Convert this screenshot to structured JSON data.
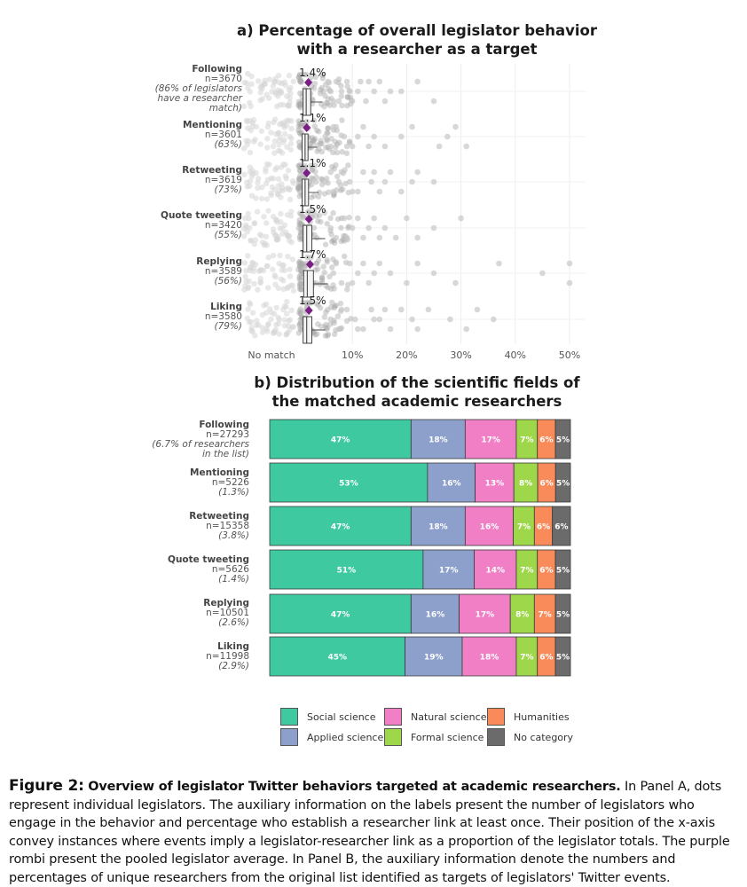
{
  "panel_a": {
    "title_line1": "a) Percentage of overall legislator behavior",
    "title_line2": "with a researcher as a target"
  },
  "panel_b": {
    "title_line1": "b) Distribution of the scientific fields of",
    "title_line2": "the matched academic researchers"
  },
  "chart_data": [
    {
      "type": "scatter",
      "title": "a) Percentage of overall legislator behavior with a researcher as a target",
      "xlabel": "",
      "x_tick_labels": [
        "No match",
        "10%",
        "20%",
        "30%",
        "40%",
        "50%"
      ],
      "xlim": [
        0,
        50
      ],
      "rows": [
        {
          "name": "Following",
          "n": "n=3670",
          "note1": "(86% of legislators",
          "note2": "have a researcher",
          "note3": "match)",
          "avg_label": "1.4%",
          "avg": 1.4,
          "box": [
            0.3,
            0.6,
            1.0,
            2.0,
            4.5
          ],
          "outliers": [
            [
              6,
              0
            ],
            [
              7.5,
              1
            ],
            [
              9,
              -1
            ],
            [
              11,
              0
            ],
            [
              12.5,
              1
            ],
            [
              14,
              0
            ],
            [
              15,
              -1
            ],
            [
              16,
              1
            ],
            [
              19,
              0
            ],
            [
              22,
              -1
            ],
            [
              25,
              1
            ],
            [
              5.5,
              -1
            ],
            [
              8,
              0
            ],
            [
              10,
              1
            ],
            [
              13,
              -1
            ],
            [
              17,
              0
            ],
            [
              6.5,
              1
            ],
            [
              9.5,
              0
            ],
            [
              11.5,
              -1
            ],
            [
              7,
              -1
            ]
          ]
        },
        {
          "name": "Mentioning",
          "n": "n=3601",
          "note1": "(63%)",
          "note2": "",
          "note3": "",
          "avg_label": "1.1%",
          "avg": 1.1,
          "box": [
            0.2,
            0.4,
            0.8,
            1.5,
            3.5
          ],
          "outliers": [
            [
              5,
              0
            ],
            [
              6,
              1
            ],
            [
              7,
              -1
            ],
            [
              8.5,
              0
            ],
            [
              10,
              1
            ],
            [
              12,
              -1
            ],
            [
              14,
              0
            ],
            [
              16,
              1
            ],
            [
              19,
              0
            ],
            [
              21,
              -1
            ],
            [
              26,
              1
            ],
            [
              27.5,
              0
            ],
            [
              29,
              -1
            ],
            [
              31,
              1
            ],
            [
              6.5,
              -1
            ],
            [
              9,
              1
            ],
            [
              11,
              0
            ],
            [
              13,
              1
            ]
          ]
        },
        {
          "name": "Retweeting",
          "n": "n=3619",
          "note1": "(73%)",
          "note2": "",
          "note3": "",
          "avg_label": "1.1%",
          "avg": 1.1,
          "box": [
            0.2,
            0.4,
            0.8,
            1.6,
            3.8
          ],
          "outliers": [
            [
              5,
              0
            ],
            [
              6.5,
              1
            ],
            [
              8,
              -1
            ],
            [
              9.5,
              0
            ],
            [
              11,
              1
            ],
            [
              12,
              -1
            ],
            [
              13.5,
              0
            ],
            [
              15,
              1
            ],
            [
              17,
              -1
            ],
            [
              19,
              1
            ],
            [
              21,
              0
            ],
            [
              22,
              -1
            ],
            [
              25,
              0
            ],
            [
              6,
              -1
            ],
            [
              7.5,
              0
            ],
            [
              10,
              1
            ],
            [
              14,
              -1
            ],
            [
              16,
              0
            ]
          ]
        },
        {
          "name": "Quote tweeting",
          "n": "n=3420",
          "note1": "(55%)",
          "note2": "",
          "note3": "",
          "avg_label": "1.5%",
          "avg": 1.5,
          "box": [
            0.3,
            0.6,
            1.1,
            2.2,
            5.0
          ],
          "outliers": [
            [
              6,
              0
            ],
            [
              7,
              1
            ],
            [
              8.5,
              -1
            ],
            [
              10,
              0
            ],
            [
              12,
              1
            ],
            [
              14,
              -1
            ],
            [
              16,
              0
            ],
            [
              18,
              1
            ],
            [
              20,
              -1
            ],
            [
              22,
              1
            ],
            [
              25,
              0
            ],
            [
              30,
              -1
            ],
            [
              9,
              1
            ],
            [
              11,
              -1
            ],
            [
              13,
              0
            ],
            [
              15,
              1
            ]
          ]
        },
        {
          "name": "Replying",
          "n": "n=3589",
          "note1": "(56%)",
          "note2": "",
          "note3": "",
          "avg_label": "1.7%",
          "avg": 1.7,
          "box": [
            0.3,
            0.7,
            1.2,
            2.5,
            5.5
          ],
          "outliers": [
            [
              6.5,
              0
            ],
            [
              8,
              1
            ],
            [
              9.5,
              -1
            ],
            [
              11,
              0
            ],
            [
              13,
              1
            ],
            [
              15,
              -1
            ],
            [
              17,
              0
            ],
            [
              20,
              1
            ],
            [
              22,
              -1
            ],
            [
              25,
              0
            ],
            [
              29,
              1
            ],
            [
              37,
              -1
            ],
            [
              45,
              0
            ],
            [
              50,
              1
            ],
            [
              50,
              -1
            ],
            [
              7,
              -1
            ],
            [
              10,
              1
            ],
            [
              12,
              -1
            ],
            [
              14,
              0
            ]
          ]
        },
        {
          "name": "Liking",
          "n": "n=3580",
          "note1": "(79%)",
          "note2": "",
          "note3": "",
          "avg_label": "1.5%",
          "avg": 1.5,
          "box": [
            0.3,
            0.6,
            1.1,
            2.2,
            5.0
          ],
          "outliers": [
            [
              6,
              0
            ],
            [
              7.5,
              1
            ],
            [
              9,
              -1
            ],
            [
              10.5,
              0
            ],
            [
              12,
              1
            ],
            [
              13.5,
              -1
            ],
            [
              15,
              0
            ],
            [
              17,
              1
            ],
            [
              19,
              -1
            ],
            [
              21,
              0
            ],
            [
              22,
              1
            ],
            [
              24,
              -1
            ],
            [
              28,
              0
            ],
            [
              31,
              1
            ],
            [
              33,
              -1
            ],
            [
              36,
              0
            ],
            [
              8,
              -1
            ],
            [
              11,
              1
            ],
            [
              14,
              0
            ],
            [
              16,
              -1
            ]
          ]
        }
      ]
    },
    {
      "type": "bar",
      "stacked": true,
      "orientation": "horizontal",
      "title": "b) Distribution of the scientific fields of the matched academic researchers",
      "categories": [
        {
          "name": "Following",
          "n": "n=27293",
          "note1": "(6.7% of researchers",
          "note2": "in the list)"
        },
        {
          "name": "Mentioning",
          "n": "n=5226",
          "note1": "(1.3%)",
          "note2": ""
        },
        {
          "name": "Retweeting",
          "n": "n=15358",
          "note1": "(3.8%)",
          "note2": ""
        },
        {
          "name": "Quote tweeting",
          "n": "n=5626",
          "note1": "(1.4%)",
          "note2": ""
        },
        {
          "name": "Replying",
          "n": "n=10501",
          "note1": "(2.6%)",
          "note2": ""
        },
        {
          "name": "Liking",
          "n": "n=11998",
          "note1": "(2.9%)",
          "note2": ""
        }
      ],
      "series": [
        {
          "name": "Social science",
          "color": "#3ec9a0",
          "values": [
            47,
            53,
            47,
            51,
            47,
            45
          ],
          "labels": [
            "47%",
            "53%",
            "47%",
            "51%",
            "47%",
            "45%"
          ]
        },
        {
          "name": "Applied science",
          "color": "#8da0cb",
          "values": [
            18,
            16,
            18,
            17,
            16,
            19
          ],
          "labels": [
            "18%",
            "16%",
            "18%",
            "17%",
            "16%",
            "19%"
          ]
        },
        {
          "name": "Natural science",
          "color": "#f07fc6",
          "values": [
            17,
            13,
            16,
            14,
            17,
            18
          ],
          "labels": [
            "17%",
            "13%",
            "16%",
            "14%",
            "17%",
            "18%"
          ]
        },
        {
          "name": "Formal science",
          "color": "#9ed84a",
          "values": [
            7,
            8,
            7,
            7,
            8,
            7
          ],
          "labels": [
            "7%",
            "8%",
            "7%",
            "7%",
            "8%",
            "7%"
          ]
        },
        {
          "name": "Humanities",
          "color": "#f98a5a",
          "values": [
            6,
            6,
            6,
            6,
            7,
            6
          ],
          "labels": [
            "6%",
            "6%",
            "6%",
            "6%",
            "7%",
            "6%"
          ]
        },
        {
          "name": "No category",
          "color": "#6b6b6b",
          "values": [
            5,
            5,
            6,
            5,
            5,
            5
          ],
          "labels": [
            "5%",
            "5%",
            "6%",
            "5%",
            "5%",
            "5%"
          ]
        }
      ]
    }
  ],
  "legend": {
    "items": [
      {
        "label": "Social science",
        "color": "#3ec9a0"
      },
      {
        "label": "Natural science",
        "color": "#f07fc6"
      },
      {
        "label": "Humanities",
        "color": "#f98a5a"
      },
      {
        "label": "Applied science",
        "color": "#8da0cb"
      },
      {
        "label": "Formal science",
        "color": "#9ed84a"
      },
      {
        "label": "No category",
        "color": "#6b6b6b"
      }
    ]
  },
  "caption": {
    "figure_label": "Figure 2:",
    "caption_title": "Overview of legislator Twitter behaviors targeted at academic researchers.",
    "body": "In Panel A, dots represent individual legislators. The auxiliary information on the labels present the number of legislators who engage in the behavior and percentage who establish a researcher link at least once. Their position of the x-axis convey instances where events imply a legislator-researcher link as a proportion of the legislator totals. The purple rombi present the pooled legislator average. In Panel B, the auxiliary information denote the numbers and percentages of unique researchers from the original list identified as targets of legislators' Twitter events."
  }
}
